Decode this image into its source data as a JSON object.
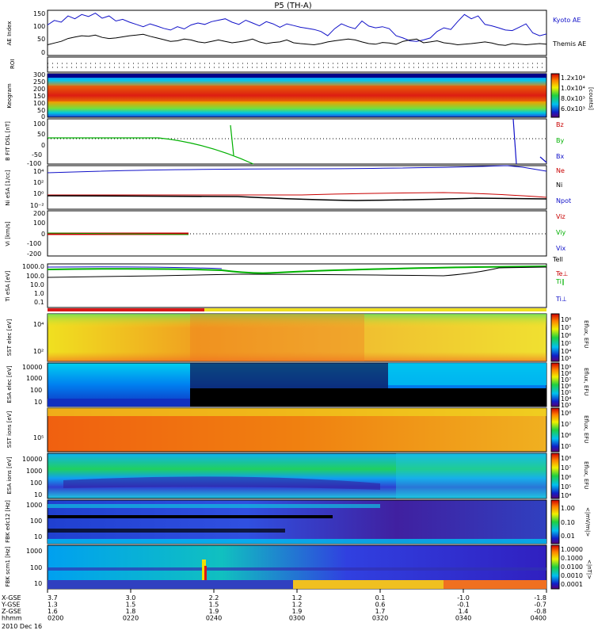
{
  "chart_data": {
    "type": "multi-panel-timeseries",
    "title": "P5 (TH-A)",
    "date": "2010 Dec 16",
    "x": {
      "tick_labels": [
        "0200",
        "0220",
        "0240",
        "0300",
        "0320",
        "0340",
        "0400"
      ],
      "coords": [
        {
          "label": "X-GSE",
          "values": [
            "3.7",
            "3.0",
            "2.2",
            "1.2",
            "0.1",
            "-1.0",
            "-1.8"
          ]
        },
        {
          "label": "Y-GSE",
          "values": [
            "1.3",
            "1.5",
            "1.5",
            "1.2",
            "0.6",
            "-0.1",
            "-0.7"
          ]
        },
        {
          "label": "Z-GSE",
          "values": [
            "1.6",
            "1.8",
            "1.9",
            "1.9",
            "1.7",
            "1.4",
            "-0.8"
          ]
        },
        {
          "label": "hhmm",
          "values": [
            "0200",
            "0220",
            "0240",
            "0300",
            "0320",
            "0340",
            "0400"
          ]
        }
      ]
    },
    "panels": [
      {
        "id": "ae",
        "ylabel": "AE Index",
        "ticks": [
          "150",
          "100",
          "50",
          "0"
        ],
        "legend": [
          {
            "text": "Kyoto AE",
            "color": "#1010c8"
          },
          {
            "text": "Themis AE",
            "color": "#000000"
          }
        ],
        "series": [
          {
            "name": "Kyoto AE",
            "color": "#1010c8",
            "values": [
              108,
              124,
              118,
              140,
              130,
              145,
              138,
              150,
              132,
              140,
              122,
              128,
              118,
              110,
              102,
              112,
              104,
              96,
              90,
              102,
              94,
              108,
              115,
              110,
              120,
              125,
              130,
              118,
              110,
              125,
              115,
              105,
              120,
              112,
              100,
              112,
              106,
              100,
              96,
              92,
              85,
              70,
              95,
              112,
              102,
              95,
              122,
              104,
              98,
              102,
              95,
              70,
              62,
              52,
              50,
              55,
              62,
              85,
              98,
              92,
              120,
              145,
              130,
              140,
              110,
              105,
              98,
              90,
              88,
              100,
              112,
              80,
              70,
              76
            ]
          },
          {
            "name": "Themis AE",
            "color": "#000000",
            "values": [
              38,
              44,
              50,
              60,
              65,
              70,
              68,
              72,
              64,
              60,
              62,
              66,
              70,
              72,
              75,
              68,
              62,
              56,
              50,
              52,
              58,
              55,
              48,
              45,
              50,
              55,
              50,
              45,
              48,
              52,
              58,
              48,
              42,
              46,
              48,
              55,
              45,
              42,
              40,
              38,
              42,
              48,
              52,
              55,
              58,
              55,
              48,
              42,
              40,
              46,
              44,
              40,
              50,
              55,
              58,
              45,
              48,
              52,
              45,
              42,
              38,
              40,
              42,
              45,
              48,
              44,
              38,
              36,
              42,
              40,
              38,
              40,
              42,
              40
            ]
          }
        ]
      },
      {
        "id": "roi",
        "ylabel": "ROI"
      },
      {
        "id": "keogram",
        "ylabel": "Keogram",
        "ticks": [
          "300",
          "250",
          "200",
          "150",
          "100",
          "50",
          "0"
        ],
        "colorbar": {
          "label": "[counts]",
          "ticks": [
            "1.2x10⁴",
            "1.0x10⁴",
            "8.0x10³",
            "6.0x10³"
          ]
        }
      },
      {
        "id": "bfit",
        "ylabel": "B FIT DSL [nT]",
        "ticks": [
          "100",
          "50",
          "0",
          "-50",
          "-100"
        ],
        "legend": [
          {
            "text": "Bz",
            "color": "#c80000"
          },
          {
            "text": "By",
            "color": "#00b000"
          },
          {
            "text": "Bx",
            "color": "#1010c8"
          }
        ]
      },
      {
        "id": "ni",
        "ylabel": "Ni eSA [1/cc]",
        "ticks": [
          "10⁴",
          "10²",
          "10⁰",
          "10⁻²"
        ],
        "legend": [
          {
            "text": "Ne",
            "color": "#c80000"
          },
          {
            "text": "Ni",
            "color": "#000000"
          },
          {
            "text": "Npot",
            "color": "#1010c8"
          }
        ]
      },
      {
        "id": "vi",
        "ylabel": "Vi [km/s]",
        "ticks": [
          "200",
          "100",
          "0",
          "-100",
          "-200"
        ],
        "legend": [
          {
            "text": "Viz",
            "color": "#c80000"
          },
          {
            "text": "Viy",
            "color": "#00b000"
          },
          {
            "text": "Vix",
            "color": "#1010c8"
          },
          {
            "text": "Tell",
            "color": "#000000"
          }
        ]
      },
      {
        "id": "ti",
        "ylabel": "Ti eSA [eV]",
        "ticks": [
          "1000.0",
          "100.0",
          "10.0",
          "1.0",
          "0.1"
        ],
        "legend": [
          {
            "text": "Te⊥",
            "color": "#c80000"
          },
          {
            "text": "Ti∥",
            "color": "#00b000"
          },
          {
            "text": "Ti⊥",
            "color": "#1010c8"
          }
        ]
      },
      {
        "id": "sst_e",
        "ylabel": "SST elec [eV]",
        "ticks": [
          "10⁴",
          "10²"
        ],
        "colorbar": {
          "label": "Eflux, EFU",
          "ticks": [
            "10⁸",
            "10⁷",
            "10⁶",
            "10⁵",
            "10⁴",
            "10³"
          ]
        }
      },
      {
        "id": "esa_e",
        "ylabel": "ESA elec [eV]",
        "ticks": [
          "10000",
          "1000",
          "100",
          "10"
        ],
        "colorbar": {
          "label": "Eflux, EFU",
          "ticks": [
            "10⁹",
            "10⁸",
            "10⁷",
            "10⁶",
            "10⁵",
            "10⁴",
            "10³"
          ]
        }
      },
      {
        "id": "sst_i",
        "ylabel": "SST ions [eV]",
        "ticks": [
          "10⁵"
        ],
        "colorbar": {
          "label": "Eflux, EFU",
          "ticks": [
            "10⁸",
            "10⁷",
            "10⁶",
            "10⁵"
          ]
        }
      },
      {
        "id": "esa_i",
        "ylabel": "ESA ions [eV]",
        "ticks": [
          "10000",
          "1000",
          "100",
          "10"
        ],
        "colorbar": {
          "label": "Eflux, EFU",
          "ticks": [
            "10⁸",
            "10⁷",
            "10⁶",
            "10⁵",
            "10⁴"
          ]
        }
      },
      {
        "id": "fbk_e12",
        "ylabel": "FBK edc12 [Hz]",
        "ticks": [
          "1000",
          "100",
          "10"
        ],
        "colorbar": {
          "label": "<|mV/m|>",
          "ticks": [
            "1.00",
            "0.10",
            "0.01"
          ]
        }
      },
      {
        "id": "fbk_scm",
        "ylabel": "FBK scm1 [Hz]",
        "ticks": [
          "1000",
          "100",
          "10"
        ],
        "colorbar": {
          "label": "<|nT|>",
          "ticks": [
            "1.0000",
            "0.1000",
            "0.0100",
            "0.0010",
            "0.0001"
          ]
        }
      }
    ]
  }
}
